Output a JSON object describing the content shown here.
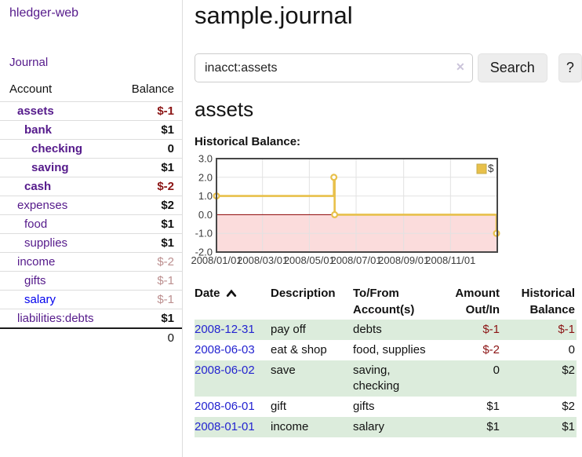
{
  "app": {
    "brand": "hledger-web",
    "nav_journal": "Journal"
  },
  "colors": {
    "visited_link_purple": "#551a8b",
    "unvisited_link_blue": "#0000ee",
    "strong_negative_red": "#8b1414",
    "soft_negative_pink": "#bc8f8f",
    "row_stripe_green": "#dcecdc",
    "chart_gold": "#e8c04a",
    "chart_negative_pink": "#fbdcdc",
    "chart_zero_line": "#8b0000"
  },
  "sidebar": {
    "header": {
      "account": "Account",
      "balance": "Balance"
    },
    "accounts": [
      {
        "name": "assets",
        "indent": 1,
        "bold": true,
        "visited": true,
        "balance": "$-1",
        "emphasis": "strong-negative"
      },
      {
        "name": "bank",
        "indent": 2,
        "bold": true,
        "visited": true,
        "balance": "$1",
        "emphasis": "positive"
      },
      {
        "name": "checking",
        "indent": 3,
        "bold": true,
        "visited": true,
        "balance": "0",
        "emphasis": "positive"
      },
      {
        "name": "saving",
        "indent": 3,
        "bold": true,
        "visited": true,
        "balance": "$1",
        "emphasis": "positive"
      },
      {
        "name": "cash",
        "indent": 2,
        "bold": true,
        "visited": true,
        "balance": "$-2",
        "emphasis": "strong-negative"
      },
      {
        "name": "expenses",
        "indent": 1,
        "bold": false,
        "visited": true,
        "balance": "$2",
        "emphasis": "positive"
      },
      {
        "name": "food",
        "indent": 2,
        "bold": false,
        "visited": true,
        "balance": "$1",
        "emphasis": "positive"
      },
      {
        "name": "supplies",
        "indent": 2,
        "bold": false,
        "visited": true,
        "balance": "$1",
        "emphasis": "positive"
      },
      {
        "name": "income",
        "indent": 1,
        "bold": false,
        "visited": true,
        "balance": "$-2",
        "emphasis": "soft-negative"
      },
      {
        "name": "gifts",
        "indent": 2,
        "bold": false,
        "visited": true,
        "balance": "$-1",
        "emphasis": "soft-negative"
      },
      {
        "name": "salary",
        "indent": 2,
        "bold": false,
        "visited": false,
        "balance": "$-1",
        "emphasis": "soft-negative"
      },
      {
        "name": "liabilities:debts",
        "indent": 1,
        "bold": false,
        "visited": true,
        "balance": "$1",
        "emphasis": "positive"
      }
    ],
    "total": "0"
  },
  "main": {
    "title": "sample.journal",
    "search": {
      "value": "inacct:assets",
      "clear_icon": "✕",
      "button": "Search",
      "help_button": "?"
    },
    "account_heading": "assets",
    "chart_heading": "Historical Balance:"
  },
  "chart_data": {
    "type": "line",
    "steps": true,
    "title": "Historical Balance:",
    "series": [
      {
        "name": "$",
        "color": "#e8c04a",
        "points": [
          [
            "2008-01-01",
            1
          ],
          [
            "2008-06-02",
            2
          ],
          [
            "2008-06-03",
            0
          ],
          [
            "2008-12-31",
            -1
          ]
        ]
      }
    ],
    "xlim": [
      "2008-01-01",
      "2009-01-01"
    ],
    "ylim": [
      -2,
      3
    ],
    "x_ticks": [
      "2008/01/01",
      "2008/03/01",
      "2008/05/01",
      "2008/07/01",
      "2008/09/01",
      "2008/11/01"
    ],
    "y_ticks": [
      3,
      2,
      1,
      0,
      -1,
      -2
    ],
    "grid": true,
    "negative_region_color": "#fbdcdc",
    "zero_line_color": "#8b0000",
    "legend": {
      "label": "$",
      "position": "top-right"
    }
  },
  "register": {
    "columns": [
      {
        "label": "Date",
        "sort": "ascending"
      },
      {
        "label": "Description"
      },
      {
        "label": "To/From Account(s)"
      },
      {
        "label": "Amount Out/In"
      },
      {
        "label": "Historical Balance"
      }
    ],
    "rows": [
      {
        "date": "2008-12-31",
        "description": "pay off",
        "accounts": "debts",
        "amount": "$-1",
        "balance": "$-1"
      },
      {
        "date": "2008-06-03",
        "description": "eat & shop",
        "accounts": "food, supplies",
        "amount": "$-2",
        "balance": "0"
      },
      {
        "date": "2008-06-02",
        "description": "save",
        "accounts": "saving, checking",
        "amount": "0",
        "balance": "$2"
      },
      {
        "date": "2008-06-01",
        "description": "gift",
        "accounts": "gifts",
        "amount": "$1",
        "balance": "$2"
      },
      {
        "date": "2008-01-01",
        "description": "income",
        "accounts": "salary",
        "amount": "$1",
        "balance": "$1"
      }
    ]
  }
}
